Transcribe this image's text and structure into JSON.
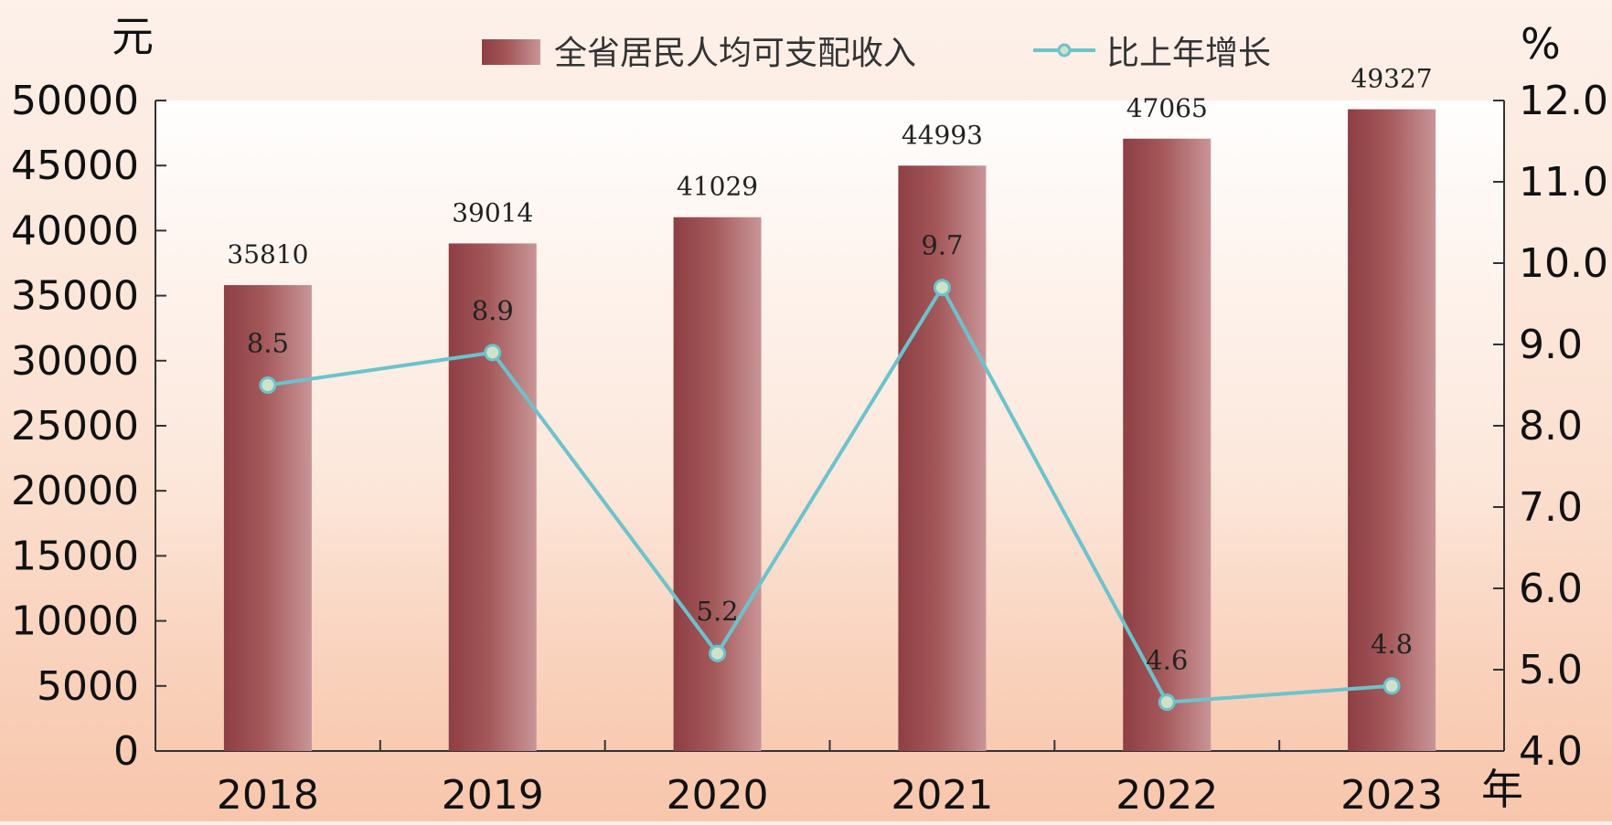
{
  "chart_data": {
    "type": "bar",
    "categories": [
      "2018",
      "2019",
      "2020",
      "2021",
      "2022",
      "2023"
    ],
    "series": [
      {
        "name": "全省居民人均可支配收入",
        "type": "bar",
        "axis": "left",
        "values": [
          35810,
          39014,
          41029,
          44993,
          47065,
          49327
        ],
        "color": "#a4585a"
      },
      {
        "name": "比上年增长",
        "type": "line",
        "axis": "right",
        "values": [
          8.5,
          8.9,
          5.2,
          9.7,
          4.6,
          4.8
        ],
        "color": "#6cc3cc"
      }
    ],
    "left_axis": {
      "unit": "元",
      "ylim": [
        0,
        50000
      ],
      "ticks": [
        "0",
        "5000",
        "10000",
        "15000",
        "20000",
        "25000",
        "30000",
        "35000",
        "40000",
        "45000",
        "50000"
      ]
    },
    "right_axis": {
      "unit": "%",
      "ylim": [
        4.0,
        12.0
      ],
      "ticks": [
        "4.0",
        "5.0",
        "6.0",
        "7.0",
        "8.0",
        "9.0",
        "10.0",
        "11.0",
        "12.0"
      ]
    },
    "x_axis_unit": "年",
    "bar_labels": [
      "35810",
      "39014",
      "41029",
      "44993",
      "47065",
      "49327"
    ],
    "line_labels": [
      "8.5",
      "8.9",
      "5.2",
      "9.7",
      "4.6",
      "4.8"
    ],
    "grid": false,
    "legend_position": "top-center"
  }
}
